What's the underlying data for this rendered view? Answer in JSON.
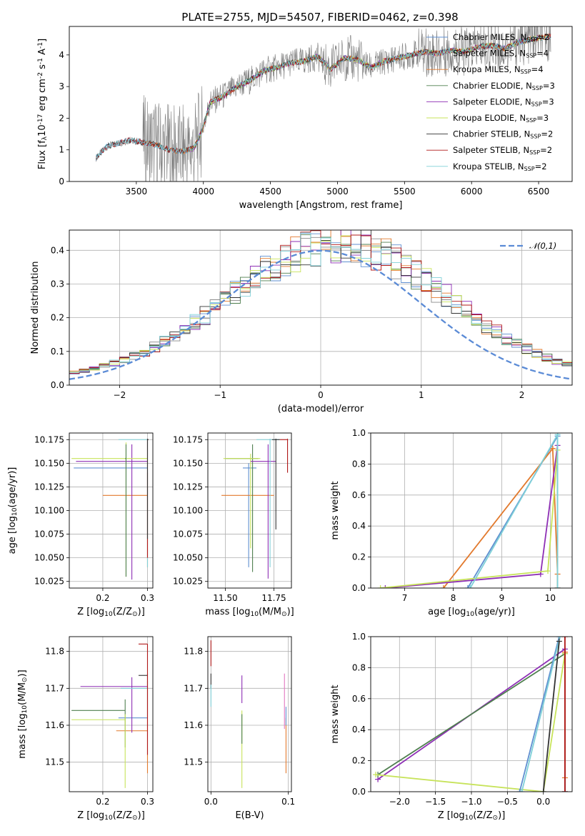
{
  "figure_title": "PLATE=2755, MJD=54507, FIBERID=0462, z=0.398",
  "colors": {
    "Chabrier MILES": "#5f8fd0",
    "Salpeter MILES": "#8a8a8a",
    "Kroupa MILES": "#e27a2e",
    "Chabrier ELODIE": "#4f7f4f",
    "Salpeter ELODIE": "#8e2fb5",
    "Kroupa ELODIE": "#c7e35a",
    "Chabrier STELIB": "#333333",
    "Salpeter STELIB": "#b01818",
    "Kroupa STELIB": "#7fd0d8",
    "data": "#7f7f7f",
    "gaussian": "#5b8bd6",
    "pink": "#e377c2"
  },
  "legend_entries": [
    {
      "name": "Chabrier MILES, N",
      "sub": "SSP",
      "suffix": "=2"
    },
    {
      "name": "Salpeter MILES, N",
      "sub": "SSP",
      "suffix": "=4"
    },
    {
      "name": "Kroupa MILES, N",
      "sub": "SSP",
      "suffix": "=4"
    },
    {
      "name": "Chabrier ELODIE, N",
      "sub": "SSP",
      "suffix": "=3"
    },
    {
      "name": "Salpeter ELODIE, N",
      "sub": "SSP",
      "suffix": "=3"
    },
    {
      "name": "Kroupa ELODIE, N",
      "sub": "SSP",
      "suffix": "=3"
    },
    {
      "name": "Chabrier STELIB, N",
      "sub": "SSP",
      "suffix": "=2"
    },
    {
      "name": "Salpeter STELIB, N",
      "sub": "SSP",
      "suffix": "=2"
    },
    {
      "name": "Kroupa STELIB, N",
      "sub": "SSP",
      "suffix": "=2"
    }
  ],
  "chart_data": [
    {
      "id": "spectrum",
      "type": "line",
      "title": "PLATE=2755, MJD=54507, FIBERID=0462, z=0.398",
      "xlabel": "wavelength [Angstrom, rest frame]",
      "ylabel": "Flux [f$_\\lambda$10$^{-17}$ erg cm$^{-2}$ s$^{-1}$ A$^{-1}$]",
      "xlim": [
        3000,
        6750
      ],
      "ylim": [
        0,
        4.9
      ],
      "xticks": [
        3500,
        4000,
        4500,
        5000,
        5500,
        6000,
        6500
      ],
      "yticks": [
        0,
        1,
        2,
        3,
        4
      ],
      "grid": false,
      "legend": "upper right",
      "continuum_knots": {
        "x": [
          3200,
          3280,
          3350,
          3450,
          3550,
          3650,
          3750,
          3850,
          3930,
          3990,
          4050,
          4150,
          4250,
          4350,
          4450,
          4550,
          4650,
          4750,
          4850,
          4950,
          5050,
          5150,
          5250,
          5350,
          5450,
          5550,
          5650,
          5750,
          5850,
          5950,
          6050,
          6150,
          6250,
          6350,
          6450,
          6590
        ],
        "y": [
          0.75,
          1.1,
          1.2,
          1.3,
          1.25,
          1.15,
          1.0,
          0.95,
          1.05,
          1.6,
          2.5,
          2.7,
          3.0,
          3.2,
          3.5,
          3.6,
          3.75,
          3.8,
          3.95,
          3.55,
          3.9,
          3.85,
          3.6,
          3.8,
          3.9,
          4.0,
          4.1,
          4.05,
          4.15,
          4.1,
          4.25,
          4.3,
          4.2,
          4.4,
          4.5,
          4.6
        ]
      },
      "series": [
        {
          "name": "Chabrier MILES, N_SSP=2",
          "x_range": [
            3200,
            6590
          ]
        },
        {
          "name": "Salpeter MILES, N_SSP=4",
          "x_range": [
            3200,
            6590
          ]
        },
        {
          "name": "Kroupa MILES, N_SSP=4",
          "x_range": [
            3550,
            6590
          ]
        },
        {
          "name": "Chabrier ELODIE, N_SSP=3",
          "x_range": [
            3900,
            6590
          ]
        },
        {
          "name": "Salpeter ELODIE, N_SSP=3",
          "x_range": [
            3900,
            6590
          ]
        },
        {
          "name": "Kroupa ELODIE, N_SSP=3",
          "x_range": [
            3900,
            6590
          ]
        },
        {
          "name": "Chabrier STELIB, N_SSP=2",
          "x_range": [
            3200,
            6590
          ]
        },
        {
          "name": "Salpeter STELIB, N_SSP=2",
          "x_range": [
            3200,
            6590
          ]
        },
        {
          "name": "Kroupa STELIB, N_SSP=2",
          "x_range": [
            3200,
            6590
          ]
        }
      ]
    },
    {
      "id": "residuals",
      "type": "line",
      "xlabel": "(data-model)/error",
      "ylabel": "Normed distribution",
      "xlim": [
        -2.5,
        2.5
      ],
      "ylim": [
        0,
        0.46
      ],
      "xticks": [
        -2,
        -1,
        0,
        1,
        2
      ],
      "yticks": [
        0.0,
        0.1,
        0.2,
        0.3,
        0.4
      ],
      "grid": true,
      "legend": "upper right",
      "bin_width": 0.1,
      "reference": {
        "name": "𝒩(0,1)",
        "mean": 0,
        "sigma": 1
      },
      "histogram_center": 0.18,
      "histogram_sigma": 1.08
    },
    {
      "id": "age_vs_Z",
      "type": "scatter",
      "xlabel": "Z [log$_{10}$(Z/Z$_\\odot$)]",
      "ylabel": "age  [log$_{10}$(age/yr)]",
      "xlim": [
        0.125,
        0.312
      ],
      "ylim": [
        10.018,
        10.182
      ],
      "xticks": [
        0.2,
        0.3
      ],
      "yticks": [
        10.025,
        10.05,
        10.075,
        10.1,
        10.125,
        10.15,
        10.175
      ],
      "grid": true,
      "points": [
        {
          "model": "Chabrier MILES",
          "x": 0.255,
          "y": 10.145,
          "xerr": [
            0.135,
            0.3
          ],
          "yerr": [
            10.145,
            10.145
          ]
        },
        {
          "model": "Kroupa MILES",
          "x": 0.3,
          "y": 10.116,
          "xerr": [
            0.2,
            0.3
          ],
          "yerr": [
            10.04,
            10.14
          ]
        },
        {
          "model": "Salpeter ELODIE",
          "x": 0.265,
          "y": 10.152,
          "xerr": [
            0.14,
            0.3
          ],
          "yerr": [
            10.027,
            10.17
          ]
        },
        {
          "model": "Kroupa ELODIE",
          "x": 0.252,
          "y": 10.155,
          "xerr": [
            0.13,
            0.3
          ],
          "yerr": [
            10.03,
            10.172
          ]
        },
        {
          "model": "Chabrier ELODIE",
          "x": 0.252,
          "y": 10.155,
          "xerr": [
            0.25,
            0.252
          ],
          "yerr": [
            10.03,
            10.17
          ]
        },
        {
          "model": "Kroupa STELIB",
          "x": 0.3,
          "y": 10.175,
          "xerr": [
            0.235,
            0.3
          ],
          "yerr": [
            10.04,
            10.176
          ]
        },
        {
          "model": "Salpeter STELIB",
          "x": 0.3,
          "y": 10.175,
          "xerr": [
            0.3,
            0.302
          ],
          "yerr": [
            10.05,
            10.176
          ]
        },
        {
          "model": "Chabrier STELIB",
          "x": 0.3,
          "y": 10.175,
          "xerr": [
            0.3,
            0.302
          ],
          "yerr": [
            10.07,
            10.176
          ]
        }
      ]
    },
    {
      "id": "age_vs_mass",
      "type": "scatter",
      "xlabel": "mass [log$_{10}$(M/M$_\\odot$)]",
      "ylabel": "",
      "xlim": [
        11.41,
        11.84
      ],
      "ylim": [
        10.018,
        10.182
      ],
      "xticks": [
        11.5,
        11.75
      ],
      "yticks": [
        10.025,
        10.05,
        10.075,
        10.1,
        10.125,
        10.15,
        10.175
      ],
      "grid": true,
      "points": [
        {
          "model": "Chabrier MILES",
          "x": 11.62,
          "y": 10.145,
          "xerr": [
            11.59,
            11.66
          ],
          "yerr": [
            10.04,
            10.15
          ]
        },
        {
          "model": "Kroupa MILES",
          "x": 11.62,
          "y": 10.116,
          "xerr": [
            11.48,
            11.75
          ],
          "yerr": [
            10.116,
            10.116
          ]
        },
        {
          "model": "Chabrier ELODIE",
          "x": 11.64,
          "y": 10.155,
          "xerr": [
            11.5,
            11.67
          ],
          "yerr": [
            10.035,
            10.17
          ]
        },
        {
          "model": "Kroupa ELODIE",
          "x": 11.63,
          "y": 10.155,
          "xerr": [
            11.49,
            11.68
          ],
          "yerr": [
            10.06,
            10.16
          ]
        },
        {
          "model": "Salpeter ELODIE",
          "x": 11.72,
          "y": 10.152,
          "xerr": [
            11.63,
            11.76
          ],
          "yerr": [
            10.028,
            10.17
          ]
        },
        {
          "model": "Kroupa STELIB",
          "x": 11.73,
          "y": 10.175,
          "xerr": [
            11.66,
            11.78
          ],
          "yerr": [
            10.04,
            10.176
          ]
        },
        {
          "model": "Chabrier STELIB",
          "x": 11.76,
          "y": 10.175,
          "xerr": [
            11.74,
            11.78
          ],
          "yerr": [
            10.08,
            10.176
          ]
        },
        {
          "model": "Salpeter STELIB",
          "x": 11.82,
          "y": 10.175,
          "xerr": [
            11.78,
            11.82
          ],
          "yerr": [
            10.14,
            10.176
          ]
        }
      ]
    },
    {
      "id": "massweight_vs_age",
      "type": "line",
      "xlabel": "age  [log$_{10}$(age/yr)]",
      "ylabel": "mass weight",
      "xlim": [
        6.3,
        10.45
      ],
      "ylim": [
        0,
        1.0
      ],
      "xticks": [
        7,
        8,
        9,
        10
      ],
      "yticks": [
        0.0,
        0.2,
        0.4,
        0.6,
        0.8,
        1.0
      ],
      "grid": true,
      "series": [
        {
          "model": "Chabrier MILES",
          "x": [
            8.3,
            10.15,
            10.15
          ],
          "y": [
            0.0,
            0.98,
            0.0
          ]
        },
        {
          "model": "Kroupa MILES",
          "x": [
            7.8,
            10.05,
            10.15,
            10.15
          ],
          "y": [
            0.0,
            0.9,
            0.09,
            0.0
          ]
        },
        {
          "model": "Salpeter ELODIE",
          "x": [
            6.6,
            9.8,
            10.15,
            10.15
          ],
          "y": [
            0.0,
            0.09,
            0.92,
            0.0
          ]
        },
        {
          "model": "Kroupa ELODIE",
          "x": [
            6.5,
            9.95,
            10.15,
            10.15
          ],
          "y": [
            0.0,
            0.11,
            0.89,
            0.0
          ]
        },
        {
          "model": "Kroupa STELIB",
          "x": [
            8.35,
            10.15,
            10.15
          ],
          "y": [
            0.0,
            0.99,
            0.0
          ]
        }
      ]
    },
    {
      "id": "mass_vs_Z",
      "type": "scatter",
      "xlabel": "Z [log$_{10}$(Z/Z$_\\odot$)]",
      "ylabel": "mass [log$_{10}$(M/M$_\\odot$)]",
      "xlim": [
        0.125,
        0.312
      ],
      "ylim": [
        11.42,
        11.84
      ],
      "xticks": [
        0.2,
        0.3
      ],
      "yticks": [
        11.5,
        11.6,
        11.7,
        11.8
      ],
      "grid": true,
      "points": [
        {
          "model": "Chabrier MILES",
          "x": 0.265,
          "y": 11.62,
          "xerr": [
            0.235,
            0.3
          ],
          "yerr": [
            11.62,
            11.62
          ]
        },
        {
          "model": "Kroupa MILES",
          "x": 0.3,
          "y": 11.585,
          "xerr": [
            0.23,
            0.3
          ],
          "yerr": [
            11.47,
            11.7
          ]
        },
        {
          "model": "Chabrier ELODIE",
          "x": 0.25,
          "y": 11.64,
          "xerr": [
            0.13,
            0.25
          ],
          "yerr": [
            11.54,
            11.67
          ]
        },
        {
          "model": "Kroupa ELODIE",
          "x": 0.25,
          "y": 11.615,
          "xerr": [
            0.13,
            0.25
          ],
          "yerr": [
            11.43,
            11.63
          ]
        },
        {
          "model": "Salpeter ELODIE",
          "x": 0.265,
          "y": 11.705,
          "xerr": [
            0.15,
            0.3
          ],
          "yerr": [
            11.58,
            11.73
          ]
        },
        {
          "model": "Kroupa STELIB",
          "x": 0.3,
          "y": 11.7,
          "xerr": [
            0.24,
            0.3
          ],
          "yerr": [
            11.62,
            11.72
          ]
        },
        {
          "model": "Chabrier STELIB",
          "x": 0.3,
          "y": 11.735,
          "xerr": [
            0.28,
            0.3
          ],
          "yerr": [
            11.7,
            11.74
          ]
        },
        {
          "model": "Salpeter STELIB",
          "x": 0.3,
          "y": 11.82,
          "xerr": [
            0.28,
            0.3
          ],
          "yerr": [
            11.52,
            11.82
          ]
        }
      ]
    },
    {
      "id": "mass_vs_EBV",
      "type": "scatter",
      "xlabel": "E(B-V)",
      "ylabel": "",
      "xlim": [
        -0.004,
        0.104
      ],
      "ylim": [
        11.42,
        11.84
      ],
      "xticks": [
        0.0,
        0.1
      ],
      "yticks": [
        11.5,
        11.6,
        11.7,
        11.8
      ],
      "grid": true,
      "points": [
        {
          "model": "Salpeter STELIB",
          "x": 0.0,
          "y": 11.8,
          "yerr": [
            11.76,
            11.83
          ]
        },
        {
          "model": "Chabrier STELIB",
          "x": 0.0,
          "y": 11.72,
          "yerr": [
            11.7,
            11.74
          ]
        },
        {
          "model": "Kroupa STELIB",
          "x": 0.0,
          "y": 11.68,
          "yerr": [
            11.65,
            11.71
          ]
        },
        {
          "model": "Salpeter ELODIE",
          "x": 0.04,
          "y": 11.7,
          "yerr": [
            11.66,
            11.735
          ]
        },
        {
          "model": "Kroupa ELODIE",
          "x": 0.04,
          "y": 11.55,
          "yerr": [
            11.43,
            11.64
          ]
        },
        {
          "model": "Chabrier ELODIE",
          "x": 0.04,
          "y": 11.6,
          "yerr": [
            11.55,
            11.63
          ]
        },
        {
          "model": "pink",
          "x": 0.095,
          "y": 11.65,
          "yerr": [
            11.59,
            11.74
          ]
        },
        {
          "model": "Kroupa MILES",
          "x": 0.097,
          "y": 11.55,
          "yerr": [
            11.47,
            11.62
          ]
        },
        {
          "model": "Chabrier MILES",
          "x": 0.097,
          "y": 11.62,
          "yerr": [
            11.6,
            11.65
          ]
        }
      ]
    },
    {
      "id": "massweight_vs_Z",
      "type": "line",
      "xlabel": "Z [log$_{10}$(Z/Z$_\\odot$)]",
      "ylabel": "mass weight",
      "xlim": [
        -2.4,
        0.4
      ],
      "ylim": [
        0,
        1.0
      ],
      "xticks": [
        -2.0,
        -1.5,
        -1.0,
        -0.5,
        0.0
      ],
      "yticks": [
        0.0,
        0.2,
        0.4,
        0.6,
        0.8,
        1.0
      ],
      "grid": true,
      "series": [
        {
          "model": "Salpeter ELODIE",
          "x": [
            -2.3,
            0.3,
            0.3
          ],
          "y": [
            0.08,
            0.92,
            0.0
          ]
        },
        {
          "model": "Chabrier ELODIE",
          "x": [
            -2.3,
            0.3,
            0.3
          ],
          "y": [
            0.11,
            0.89,
            0.0
          ]
        },
        {
          "model": "Kroupa ELODIE",
          "x": [
            -2.33,
            0.0,
            0.3
          ],
          "y": [
            0.11,
            0.0,
            0.89
          ]
        },
        {
          "model": "Chabrier MILES",
          "x": [
            -0.33,
            0.22
          ],
          "y": [
            0.0,
            1.0
          ]
        },
        {
          "model": "Kroupa STELIB",
          "x": [
            -0.3,
            0.23
          ],
          "y": [
            0.0,
            1.0
          ]
        },
        {
          "model": "Chabrier STELIB",
          "x": [
            0.0,
            0.22
          ],
          "y": [
            0.0,
            0.97
          ]
        },
        {
          "model": "Kroupa MILES",
          "x": [
            0.3,
            0.3
          ],
          "y": [
            0.09,
            0.9
          ]
        },
        {
          "model": "Salpeter STELIB",
          "x": [
            0.3,
            0.3
          ],
          "y": [
            0.0,
            1.0
          ]
        }
      ]
    }
  ]
}
